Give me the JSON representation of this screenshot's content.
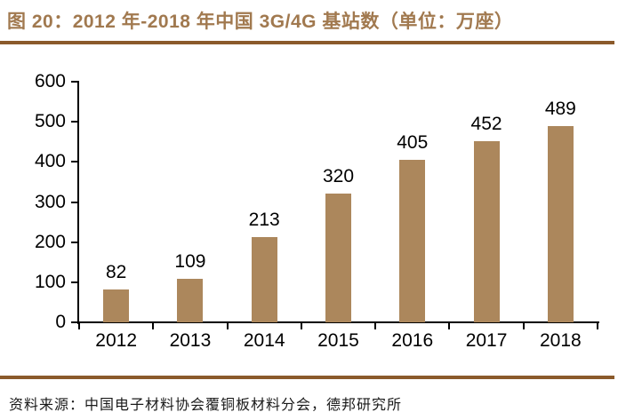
{
  "figure": {
    "title": "图 20：2012 年-2018 年中国 3G/4G 基站数（单位：万座）",
    "source": "资料来源：中国电子材料协会覆铜板材料分会，德邦研究所"
  },
  "colors": {
    "title_text": "#A1794F",
    "rule": "#8B5A2B",
    "bar": "#AC875C",
    "axis": "#000000",
    "label_text": "#000000"
  },
  "chart_data": {
    "type": "bar",
    "title": "2012 年-2018 年中国 3G/4G 基站数（单位：万座）",
    "categories": [
      "2012",
      "2013",
      "2014",
      "2015",
      "2016",
      "2017",
      "2018"
    ],
    "values": [
      82,
      109,
      213,
      320,
      405,
      452,
      489
    ],
    "data_labels": [
      "82",
      "109",
      "213",
      "320",
      "405",
      "452",
      "489"
    ],
    "xlabel": "",
    "ylabel": "",
    "ylim": [
      0,
      600
    ],
    "y_ticks": [
      0,
      100,
      200,
      300,
      400,
      500,
      600
    ],
    "grid": false,
    "legend": null,
    "bar_color": "#AC875C"
  }
}
